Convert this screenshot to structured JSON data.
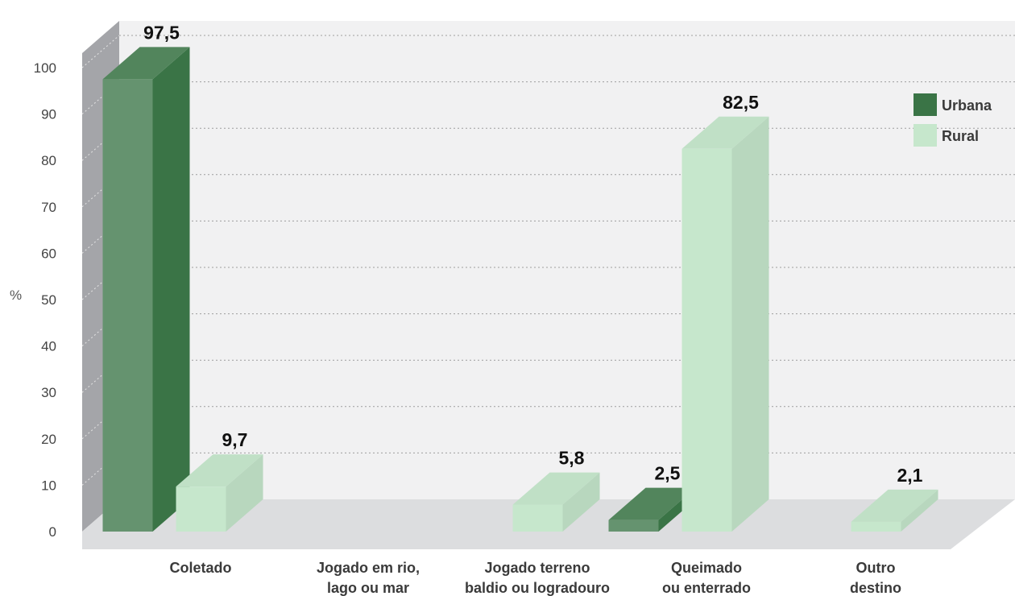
{
  "chart_data": {
    "type": "bar",
    "ylabel": "%",
    "ylim": [
      0,
      100
    ],
    "yticks": [
      0,
      10,
      20,
      30,
      40,
      50,
      60,
      70,
      80,
      90,
      100
    ],
    "grid": true,
    "legend_position": "top-right",
    "categories": [
      [
        "Coletado"
      ],
      [
        "Jogado em rio,",
        "lago ou mar"
      ],
      [
        "Jogado terreno",
        "baldio ou logradouro"
      ],
      [
        "Queimado",
        "ou enterrado"
      ],
      [
        "Outro",
        "destino"
      ]
    ],
    "series": [
      {
        "name": "Urbana",
        "color": "#3a7446",
        "values": [
          97.5,
          null,
          null,
          2.5,
          null
        ],
        "labels": [
          "97,5",
          null,
          null,
          "2,5",
          null
        ]
      },
      {
        "name": "Rural",
        "color": "#c6e7cc",
        "values": [
          9.7,
          null,
          5.8,
          82.5,
          2.1
        ],
        "labels": [
          "9,7",
          null,
          "5,8",
          "82,5",
          "2,1"
        ]
      }
    ]
  }
}
